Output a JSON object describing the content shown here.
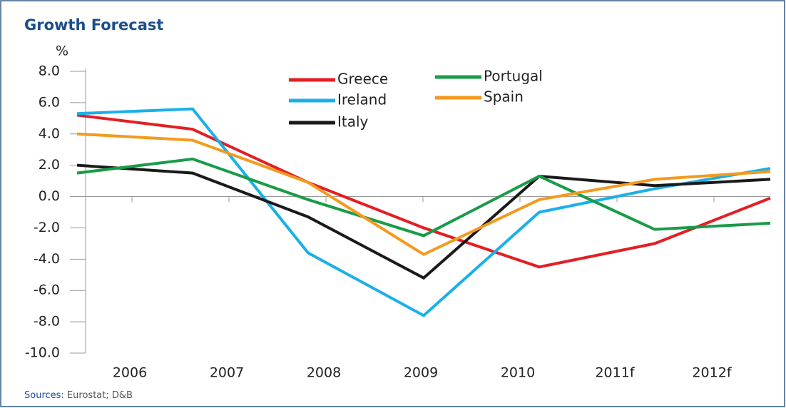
{
  "chart_data": {
    "type": "line",
    "title": "Growth Forecast",
    "y_label": "%",
    "categories": [
      "2006",
      "2007",
      "2008",
      "2009",
      "2010",
      "2011f",
      "2012f"
    ],
    "series": [
      {
        "name": "Greece",
        "color": "#e31e24",
        "values": [
          5.2,
          4.3,
          0.9,
          -2.0,
          -4.5,
          -3.0,
          -0.1
        ]
      },
      {
        "name": "Ireland",
        "color": "#1ab0e8",
        "values": [
          5.3,
          5.6,
          -3.6,
          -7.6,
          -1.0,
          0.5,
          1.8
        ]
      },
      {
        "name": "Italy",
        "color": "#1a1a1a",
        "values": [
          2.0,
          1.5,
          -1.3,
          -5.2,
          1.3,
          0.7,
          1.1
        ]
      },
      {
        "name": "Portugal",
        "color": "#1a9b48",
        "values": [
          1.5,
          2.4,
          -0.2,
          -2.5,
          1.3,
          -2.1,
          -1.7
        ]
      },
      {
        "name": "Spain",
        "color": "#f39a1e",
        "values": [
          4.0,
          3.6,
          0.9,
          -3.7,
          -0.2,
          1.1,
          1.6
        ]
      }
    ],
    "ylim": [
      -10,
      8
    ],
    "yticks": [
      {
        "value": -10,
        "label": "-10.0"
      },
      {
        "value": -8,
        "label": "-8.0"
      },
      {
        "value": -6,
        "label": "-6.0"
      },
      {
        "value": -4,
        "label": "-4.0"
      },
      {
        "value": -2,
        "label": "-2.0"
      },
      {
        "value": 0,
        "label": "0.0"
      },
      {
        "value": 2,
        "label": "2.0"
      },
      {
        "value": 4,
        "label": "4.0"
      },
      {
        "value": 6,
        "label": "6.0"
      },
      {
        "value": 8,
        "label": "8.0"
      }
    ],
    "source_label": "Sources:",
    "source": "Eurostat; D&B"
  }
}
